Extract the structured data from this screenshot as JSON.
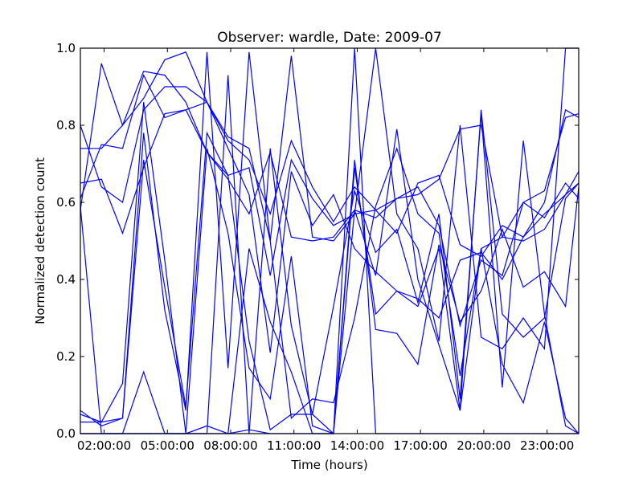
{
  "chart_data": {
    "type": "line",
    "title": "Observer: wardle, Date: 2009-07",
    "xlabel": "Time (hours)",
    "ylabel": "Normalized detection count",
    "xlim": [
      0.875,
      24.5
    ],
    "ylim": [
      0,
      1
    ],
    "grid": false,
    "line_color": "#0000ff",
    "x_ticks": [
      {
        "value": 2,
        "label": "02:00:00"
      },
      {
        "value": 5,
        "label": "05:00:00"
      },
      {
        "value": 8,
        "label": "08:00:00"
      },
      {
        "value": 11,
        "label": "11:00:00"
      },
      {
        "value": 14,
        "label": "14:00:00"
      },
      {
        "value": 17,
        "label": "17:00:00"
      },
      {
        "value": 20,
        "label": "20:00:00"
      },
      {
        "value": 23,
        "label": "23:00:00"
      }
    ],
    "y_ticks": [
      {
        "value": 0.0,
        "label": "0.0"
      },
      {
        "value": 0.2,
        "label": "0.2"
      },
      {
        "value": 0.4,
        "label": "0.4"
      },
      {
        "value": 0.6,
        "label": "0.6"
      },
      {
        "value": 0.8,
        "label": "0.8"
      },
      {
        "value": 1.0,
        "label": "1.0"
      }
    ],
    "x": [
      0.875,
      1.875,
      2.875,
      3.875,
      4.875,
      5.875,
      6.875,
      7.875,
      8.875,
      9.875,
      10.875,
      11.875,
      12.875,
      13.875,
      14.875,
      15.875,
      16.875,
      17.875,
      18.875,
      19.875,
      20.875,
      21.875,
      22.875,
      23.875,
      24.5
    ],
    "series": [
      {
        "values": [
          0.58,
          0.96,
          0.8,
          0.87,
          0.97,
          0.99,
          0.86,
          0.77,
          0.74,
          0.5,
          0.98,
          0.51,
          0.5,
          0.57,
          1.0,
          0.57,
          0.48,
          0.24,
          0.8,
          0.25,
          0.22,
          0.3,
          0.22,
          1.0,
          1.0
        ]
      },
      {
        "values": [
          0.61,
          0.75,
          0.74,
          0.93,
          0.82,
          0.84,
          0.86,
          0.76,
          0.71,
          0.57,
          0.76,
          0.64,
          0.55,
          0.64,
          0.58,
          0.61,
          0.62,
          0.66,
          0.79,
          0.8,
          0.51,
          0.6,
          0.56,
          0.65,
          0.61
        ]
      },
      {
        "values": [
          0.65,
          0.66,
          0.52,
          0.69,
          0.83,
          0.84,
          0.73,
          0.67,
          0.69,
          0.41,
          0.71,
          0.61,
          0.54,
          0.57,
          0.58,
          0.52,
          0.65,
          0.67,
          0.49,
          0.46,
          0.54,
          0.51,
          0.6,
          0.84,
          0.82
        ]
      },
      {
        "values": [
          0.74,
          0.74,
          0.8,
          0.94,
          0.93,
          0.86,
          0.73,
          0.66,
          0.57,
          0.73,
          0.51,
          0.5,
          0.51,
          0.58,
          0.56,
          0.61,
          0.64,
          0.54,
          0.28,
          0.45,
          0.41,
          0.6,
          0.63,
          0.82,
          0.83
        ]
      },
      {
        "values": [
          0.8,
          0.64,
          0.6,
          0.84,
          0.9,
          0.9,
          0.86,
          0.74,
          0.62,
          0.21,
          0.68,
          0.54,
          0.62,
          0.48,
          0.42,
          0.37,
          0.35,
          0.3,
          0.45,
          0.47,
          0.4,
          0.51,
          0.57,
          0.62,
          0.65
        ]
      },
      {
        "values": [
          0.06,
          0.02,
          0.04,
          0.78,
          0.32,
          0.06,
          0.99,
          0.17,
          0.99,
          0.5,
          0.04,
          0.09,
          0.08,
          0.3,
          0.59,
          0.74,
          0.57,
          0.52,
          0.15,
          0.48,
          0.51,
          0.5,
          0.53,
          0.62,
          0.68
        ]
      },
      {
        "values": [
          0.05,
          0.03,
          0.04,
          0.71,
          0.38,
          0.07,
          0.78,
          0.67,
          0.24,
          0.01,
          0.05,
          0.05,
          0.33,
          0.63,
          0.47,
          0.53,
          0.34,
          0.57,
          0.09,
          0.83,
          0.12,
          0.76,
          0.31,
          0.02,
          0.0
        ]
      },
      {
        "values": [
          0.03,
          0.03,
          0.13,
          0.86,
          0.45,
          0.0,
          0.74,
          0.52,
          0.17,
          0.09,
          0.46,
          0.02,
          0.0,
          0.58,
          0.41,
          0.79,
          0.4,
          0.23,
          0.06,
          0.48,
          0.18,
          0.08,
          0.29,
          0.04,
          0.0
        ]
      },
      {
        "values": [
          0.0,
          0.0,
          0.0,
          0.16,
          0.0,
          0.0,
          0.0,
          0.93,
          0.0,
          0.74,
          0.28,
          0.05,
          0.0,
          0.69,
          0.31,
          0.37,
          0.33,
          0.48,
          0.06,
          0.84,
          0.31,
          0.25,
          0.3,
          0.61,
          0.65
        ]
      },
      {
        "values": [
          0.0,
          0.0,
          0.0,
          0.0,
          0.0,
          0.0,
          0.02,
          0.0,
          0.01,
          0.0,
          0.0,
          0.0,
          0.0,
          0.71,
          0.27,
          0.26,
          0.18,
          0.49,
          0.29,
          0.37,
          0.53,
          0.38,
          0.42,
          0.33,
          0.64
        ]
      },
      {
        "values": [
          0.59,
          0.0,
          0.0,
          0.0,
          0.0,
          0.0,
          0.0,
          0.0,
          0.48,
          0.29,
          0.16,
          0.0,
          0.0,
          1.0,
          0.0,
          0.0,
          0.0,
          0.0,
          0.0,
          0.0,
          0.0,
          0.0,
          0.0,
          0.0,
          0.0
        ]
      }
    ]
  }
}
